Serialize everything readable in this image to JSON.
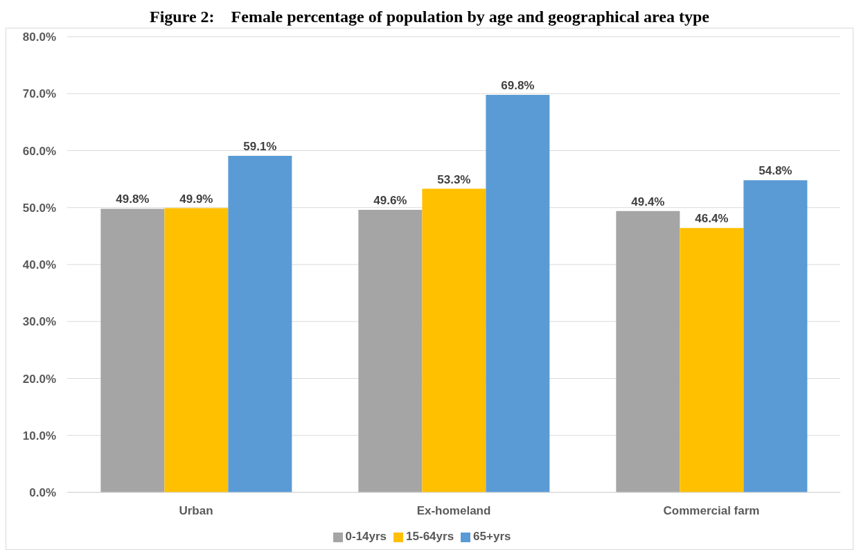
{
  "chart_data": {
    "type": "bar",
    "title": "Figure 2: Female percentage of population by age and geographical area type",
    "categories": [
      "Urban",
      "Ex-homeland",
      "Commercial farm"
    ],
    "series": [
      {
        "name": "0-14yrs",
        "color": "#a5a5a5",
        "values": [
          49.8,
          49.6,
          49.4
        ],
        "value_labels": [
          "49.8%",
          "49.6%",
          "49.4%"
        ]
      },
      {
        "name": "15-64yrs",
        "color": "#ffc000",
        "values": [
          49.9,
          53.3,
          46.4
        ],
        "value_labels": [
          "49.9%",
          "53.3%",
          "46.4%"
        ]
      },
      {
        "name": "65+yrs",
        "color": "#5b9bd5",
        "values": [
          59.1,
          69.8,
          54.8
        ],
        "value_labels": [
          "59.1%",
          "69.8%",
          "54.8%"
        ]
      }
    ],
    "ylim": [
      0,
      80
    ],
    "yticks": [
      {
        "value": 0,
        "label": "0.0%"
      },
      {
        "value": 10,
        "label": "10.0%"
      },
      {
        "value": 20,
        "label": "20.0%"
      },
      {
        "value": 30,
        "label": "30.0%"
      },
      {
        "value": 40,
        "label": "40.0%"
      },
      {
        "value": 50,
        "label": "50.0%"
      },
      {
        "value": 60,
        "label": "60.0%"
      },
      {
        "value": 70,
        "label": "70.0%"
      },
      {
        "value": 80,
        "label": "80.0%"
      }
    ],
    "grid": "y",
    "legend": "bottom"
  }
}
